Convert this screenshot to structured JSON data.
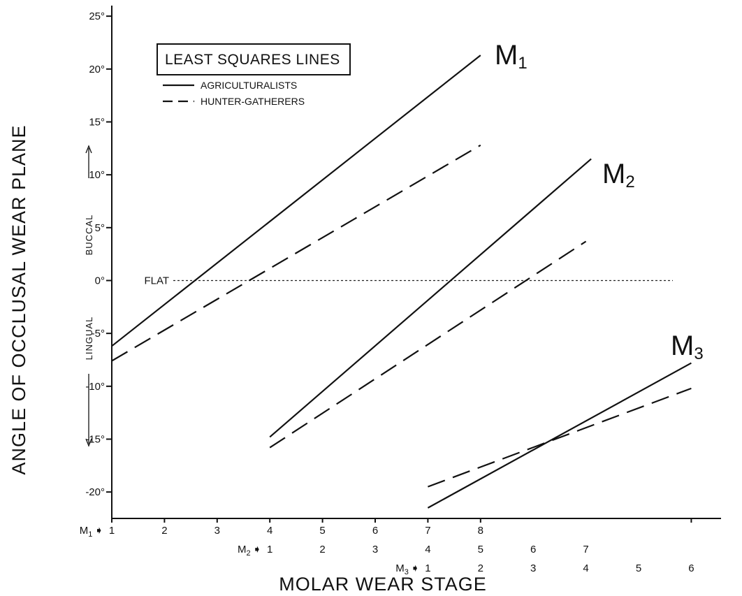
{
  "chart_data": {
    "type": "line",
    "ylabel": "ANGLE OF OCCLUSAL WEAR PLANE",
    "xlabel": "MOLAR WEAR STAGE",
    "ylim": [
      -22.5,
      26
    ],
    "y_ticks": [
      {
        "value": 25,
        "label": "25°"
      },
      {
        "value": 20,
        "label": "20°"
      },
      {
        "value": 15,
        "label": "15°"
      },
      {
        "value": 10,
        "label": "10°"
      },
      {
        "value": 5,
        "label": "5°"
      },
      {
        "value": 0,
        "label": "0°"
      },
      {
        "value": -5,
        "label": "-5°"
      },
      {
        "value": -10,
        "label": "-10°"
      },
      {
        "value": -15,
        "label": "-15°"
      },
      {
        "value": -20,
        "label": "-20°"
      }
    ],
    "x_axis_rows": [
      {
        "tooth": "M",
        "sub": "1",
        "arrow": "➧",
        "offset": 0,
        "stages": [
          "1",
          "2",
          "3",
          "4",
          "5",
          "6",
          "7",
          "8"
        ]
      },
      {
        "tooth": "M",
        "sub": "2",
        "arrow": "➧",
        "offset": 3,
        "stages": [
          "1",
          "2",
          "3",
          "4",
          "5",
          "6",
          "7"
        ]
      },
      {
        "tooth": "M",
        "sub": "3",
        "arrow": "➧",
        "offset": 6,
        "stages": [
          "1",
          "2",
          "3",
          "4",
          "5",
          "6"
        ]
      }
    ],
    "reference_line": {
      "y": 0,
      "label": "FLAT"
    },
    "direction_labels": {
      "up": "BUCCAL",
      "down": "LINGUAL"
    },
    "legend": {
      "title": "LEAST SQUARES LINES",
      "entries": [
        {
          "label": "AGRICULTURALISTS",
          "style": "solid"
        },
        {
          "label": "HUNTER-GATHERERS",
          "style": "dashed"
        }
      ]
    },
    "groups": [
      {
        "tooth": "M",
        "sub": "1",
        "series": [
          {
            "group": "AGRICULTURALISTS",
            "style": "solid",
            "x": [
              1,
              8
            ],
            "y": [
              -6.2,
              21.3
            ]
          },
          {
            "group": "HUNTER-GATHERERS",
            "style": "dashed",
            "x": [
              1,
              8
            ],
            "y": [
              -7.6,
              12.8
            ]
          }
        ]
      },
      {
        "tooth": "M",
        "sub": "2",
        "series": [
          {
            "group": "AGRICULTURALISTS",
            "style": "solid",
            "x": [
              4,
              10.1
            ],
            "y": [
              -14.8,
              11.5
            ]
          },
          {
            "group": "HUNTER-GATHERERS",
            "style": "dashed",
            "x": [
              4,
              10
            ],
            "y": [
              -15.8,
              3.7
            ]
          }
        ]
      },
      {
        "tooth": "M",
        "sub": "3",
        "series": [
          {
            "group": "AGRICULTURALISTS",
            "style": "solid",
            "x": [
              7,
              12
            ],
            "y": [
              -21.5,
              -7.8
            ]
          },
          {
            "group": "HUNTER-GATHERERS",
            "style": "dashed",
            "x": [
              7,
              12
            ],
            "y": [
              -19.5,
              -10.2
            ]
          }
        ]
      }
    ]
  }
}
